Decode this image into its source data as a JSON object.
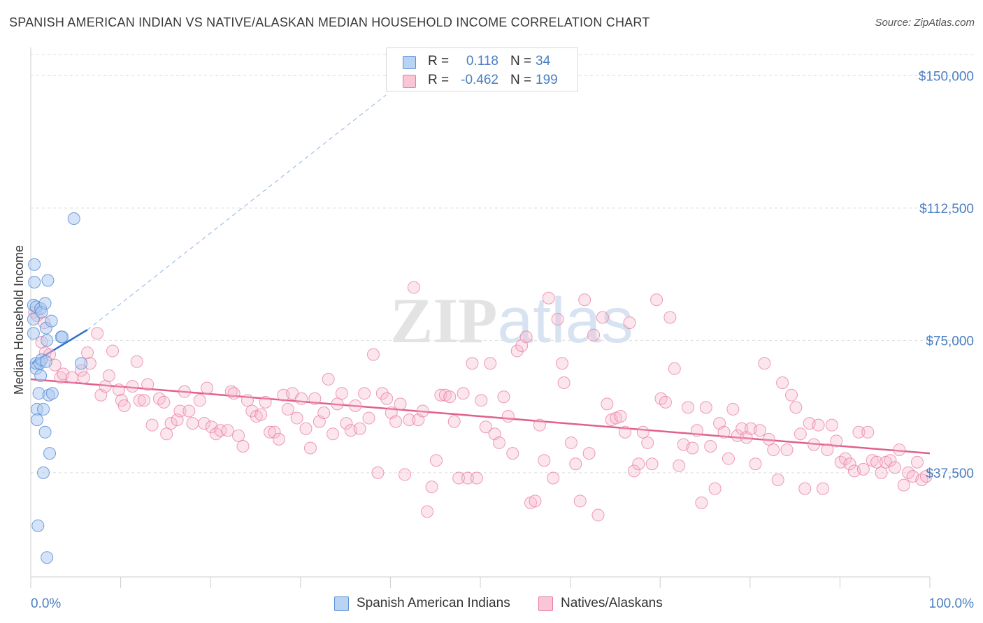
{
  "title": "SPANISH AMERICAN INDIAN VS NATIVE/ALASKAN MEDIAN HOUSEHOLD INCOME CORRELATION CHART",
  "source": "Source: ZipAtlas.com",
  "watermark": "ZIPatlas",
  "colors": {
    "blue_fill": "#aac8f0",
    "blue_stroke": "#5b8fd6",
    "blue_line": "#2f6fcc",
    "pink_fill": "#f7b8cc",
    "pink_stroke": "#e87aa0",
    "pink_line": "#e0608c",
    "value_text": "#4a7fc1",
    "grid": "#dddddd"
  },
  "legend": {
    "rows": [
      {
        "label": "R =",
        "r": "0.118",
        "n_label": "N =",
        "n": "34"
      },
      {
        "label": "R =",
        "r": "-0.462",
        "n_label": "N =",
        "n": "199"
      }
    ]
  },
  "chart_data": {
    "type": "scatter",
    "xlabel": "",
    "ylabel": "Median Household Income",
    "xlim": [
      0,
      100
    ],
    "ylim": [
      8000,
      156000
    ],
    "x_tick_labels": [
      "0.0%",
      "100.0%"
    ],
    "y_ticks": [
      37500,
      75000,
      112500,
      150000
    ],
    "y_tick_labels": [
      "$37,500",
      "$75,000",
      "$112,500",
      "$150,000"
    ],
    "grid": true,
    "legend_position": "bottom",
    "series": [
      {
        "name": "Spanish American Indians",
        "color": "blue",
        "trend": {
          "x": [
            0.1,
            6.3
          ],
          "y": [
            68500,
            78000
          ]
        },
        "trend_extension": {
          "x": [
            6.3,
            39.5
          ],
          "y": [
            78000,
            144500
          ]
        },
        "points": [
          [
            0.3,
            85000
          ],
          [
            0.3,
            81000
          ],
          [
            0.3,
            77000
          ],
          [
            0.4,
            96500
          ],
          [
            0.4,
            91500
          ],
          [
            0.6,
            84500
          ],
          [
            0.6,
            67000
          ],
          [
            0.6,
            68500
          ],
          [
            0.7,
            55500
          ],
          [
            0.7,
            52500
          ],
          [
            0.8,
            22500
          ],
          [
            0.9,
            60000
          ],
          [
            1.0,
            68500
          ],
          [
            1.1,
            84000
          ],
          [
            1.1,
            65000
          ],
          [
            1.2,
            83000
          ],
          [
            1.2,
            69500
          ],
          [
            1.4,
            55500
          ],
          [
            1.6,
            85500
          ],
          [
            1.6,
            49000
          ],
          [
            1.7,
            78500
          ],
          [
            1.7,
            69000
          ],
          [
            1.8,
            75000
          ],
          [
            1.8,
            13500
          ],
          [
            1.9,
            92000
          ],
          [
            2.0,
            59500
          ],
          [
            2.1,
            43000
          ],
          [
            2.3,
            80500
          ],
          [
            2.4,
            60000
          ],
          [
            3.4,
            76000
          ],
          [
            3.5,
            76000
          ],
          [
            4.8,
            109500
          ],
          [
            5.6,
            68500
          ],
          [
            1.4,
            37500
          ]
        ]
      },
      {
        "name": "Natives/Alaskans",
        "color": "pink",
        "trend": {
          "x": [
            0,
            100
          ],
          "y": [
            64000,
            43000
          ]
        },
        "points": [
          [
            0.4,
            83000
          ],
          [
            0.7,
            82000
          ],
          [
            1.2,
            74500
          ],
          [
            1.5,
            80000
          ],
          [
            1.6,
            71500
          ],
          [
            2.1,
            71000
          ],
          [
            2.7,
            68000
          ],
          [
            3.3,
            64500
          ],
          [
            3.6,
            65500
          ],
          [
            4.6,
            64500
          ],
          [
            5.6,
            66500
          ],
          [
            5.9,
            64500
          ],
          [
            6.3,
            71500
          ],
          [
            6.6,
            68500
          ],
          [
            7.4,
            77000
          ],
          [
            7.8,
            59500
          ],
          [
            8.3,
            62000
          ],
          [
            8.7,
            65000
          ],
          [
            9.1,
            72000
          ],
          [
            9.8,
            61000
          ],
          [
            10.1,
            58000
          ],
          [
            10.4,
            56500
          ],
          [
            11.3,
            62000
          ],
          [
            11.8,
            69000
          ],
          [
            12.1,
            58000
          ],
          [
            12.6,
            58000
          ],
          [
            13.0,
            62500
          ],
          [
            13.5,
            51000
          ],
          [
            14.3,
            58500
          ],
          [
            14.8,
            57500
          ],
          [
            15.1,
            48500
          ],
          [
            15.6,
            51500
          ],
          [
            16.3,
            52500
          ],
          [
            16.6,
            55000
          ],
          [
            17.1,
            60500
          ],
          [
            17.6,
            55000
          ],
          [
            18.0,
            51500
          ],
          [
            18.8,
            58000
          ],
          [
            19.3,
            51500
          ],
          [
            19.6,
            61500
          ],
          [
            20.1,
            50500
          ],
          [
            20.6,
            48500
          ],
          [
            21.1,
            49500
          ],
          [
            21.9,
            49500
          ],
          [
            22.3,
            60500
          ],
          [
            22.6,
            60000
          ],
          [
            23.1,
            48000
          ],
          [
            23.6,
            45000
          ],
          [
            24.1,
            58000
          ],
          [
            24.6,
            55000
          ],
          [
            25.1,
            53500
          ],
          [
            25.6,
            54000
          ],
          [
            26.1,
            57500
          ],
          [
            26.6,
            49000
          ],
          [
            27.1,
            49000
          ],
          [
            27.6,
            47000
          ],
          [
            28.1,
            59500
          ],
          [
            28.6,
            55500
          ],
          [
            29.1,
            60000
          ],
          [
            29.6,
            53000
          ],
          [
            30.1,
            58500
          ],
          [
            30.6,
            50000
          ],
          [
            31.1,
            44500
          ],
          [
            31.6,
            58500
          ],
          [
            32.1,
            52000
          ],
          [
            32.6,
            54500
          ],
          [
            33.1,
            64000
          ],
          [
            33.6,
            48500
          ],
          [
            34.1,
            57000
          ],
          [
            34.6,
            60000
          ],
          [
            35.1,
            51500
          ],
          [
            35.6,
            49500
          ],
          [
            36.1,
            56500
          ],
          [
            36.6,
            50000
          ],
          [
            37.1,
            60000
          ],
          [
            37.6,
            53000
          ],
          [
            38.1,
            71000
          ],
          [
            38.6,
            37500
          ],
          [
            39.1,
            60000
          ],
          [
            39.6,
            58500
          ],
          [
            40.1,
            54500
          ],
          [
            40.6,
            52000
          ],
          [
            41.1,
            57000
          ],
          [
            41.6,
            37000
          ],
          [
            42.1,
            52500
          ],
          [
            42.6,
            90000
          ],
          [
            43.1,
            52500
          ],
          [
            43.6,
            55000
          ],
          [
            44.1,
            26500
          ],
          [
            44.6,
            33500
          ],
          [
            45.1,
            41000
          ],
          [
            45.6,
            59500
          ],
          [
            46.1,
            59500
          ],
          [
            46.6,
            59000
          ],
          [
            47.1,
            52000
          ],
          [
            47.6,
            36000
          ],
          [
            48.1,
            60000
          ],
          [
            48.6,
            36000
          ],
          [
            49.1,
            68500
          ],
          [
            49.6,
            36000
          ],
          [
            50.1,
            58000
          ],
          [
            50.6,
            50500
          ],
          [
            51.1,
            68500
          ],
          [
            51.6,
            48500
          ],
          [
            52.1,
            46000
          ],
          [
            52.6,
            59000
          ],
          [
            53.1,
            53500
          ],
          [
            53.6,
            43000
          ],
          [
            54.1,
            72000
          ],
          [
            54.6,
            73500
          ],
          [
            55.1,
            76000
          ],
          [
            55.6,
            29000
          ],
          [
            56.1,
            29500
          ],
          [
            56.6,
            51000
          ],
          [
            57.1,
            41000
          ],
          [
            57.6,
            87000
          ],
          [
            58.1,
            36000
          ],
          [
            58.6,
            81000
          ],
          [
            59.1,
            68500
          ],
          [
            59.3,
            63000
          ],
          [
            60.1,
            46000
          ],
          [
            60.6,
            40000
          ],
          [
            61.1,
            29500
          ],
          [
            61.6,
            86500
          ],
          [
            62.1,
            43000
          ],
          [
            62.6,
            76500
          ],
          [
            63.1,
            25500
          ],
          [
            63.6,
            81500
          ],
          [
            64.1,
            57000
          ],
          [
            64.6,
            52500
          ],
          [
            65.1,
            53000
          ],
          [
            65.6,
            53500
          ],
          [
            66.1,
            49000
          ],
          [
            66.6,
            80000
          ],
          [
            67.1,
            38000
          ],
          [
            67.6,
            40000
          ],
          [
            68.1,
            49000
          ],
          [
            68.6,
            46000
          ],
          [
            69.1,
            40000
          ],
          [
            69.6,
            86500
          ],
          [
            70.1,
            58500
          ],
          [
            70.6,
            57500
          ],
          [
            71.1,
            81500
          ],
          [
            71.6,
            67000
          ],
          [
            72.1,
            39500
          ],
          [
            72.6,
            45500
          ],
          [
            73.1,
            56000
          ],
          [
            73.6,
            44500
          ],
          [
            74.1,
            49500
          ],
          [
            74.6,
            29000
          ],
          [
            75.1,
            56000
          ],
          [
            75.6,
            45000
          ],
          [
            76.1,
            33000
          ],
          [
            76.6,
            51500
          ],
          [
            77.1,
            49000
          ],
          [
            77.6,
            41500
          ],
          [
            78.1,
            55500
          ],
          [
            78.6,
            48000
          ],
          [
            79.1,
            50000
          ],
          [
            79.6,
            47500
          ],
          [
            80.1,
            50000
          ],
          [
            80.6,
            40000
          ],
          [
            81.1,
            49500
          ],
          [
            81.6,
            68500
          ],
          [
            82.1,
            47000
          ],
          [
            82.6,
            44000
          ],
          [
            83.1,
            35500
          ],
          [
            83.6,
            63000
          ],
          [
            84.1,
            44000
          ],
          [
            84.6,
            59500
          ],
          [
            85.1,
            56000
          ],
          [
            85.6,
            48500
          ],
          [
            86.1,
            33000
          ],
          [
            86.6,
            51500
          ],
          [
            87.1,
            45500
          ],
          [
            87.6,
            51000
          ],
          [
            88.1,
            33000
          ],
          [
            88.6,
            44000
          ],
          [
            89.1,
            51000
          ],
          [
            89.6,
            46500
          ],
          [
            90.1,
            40500
          ],
          [
            90.6,
            41500
          ],
          [
            91.1,
            40000
          ],
          [
            91.6,
            38000
          ],
          [
            92.1,
            49000
          ],
          [
            92.6,
            38500
          ],
          [
            93.1,
            49000
          ],
          [
            93.6,
            41000
          ],
          [
            94.1,
            40500
          ],
          [
            94.6,
            37500
          ],
          [
            95.1,
            40500
          ],
          [
            95.6,
            41000
          ],
          [
            96.1,
            39000
          ],
          [
            96.6,
            44000
          ],
          [
            97.1,
            34000
          ],
          [
            97.6,
            37500
          ],
          [
            98.1,
            36500
          ],
          [
            98.6,
            40500
          ],
          [
            99.1,
            35500
          ],
          [
            99.6,
            36500
          ]
        ]
      }
    ]
  }
}
